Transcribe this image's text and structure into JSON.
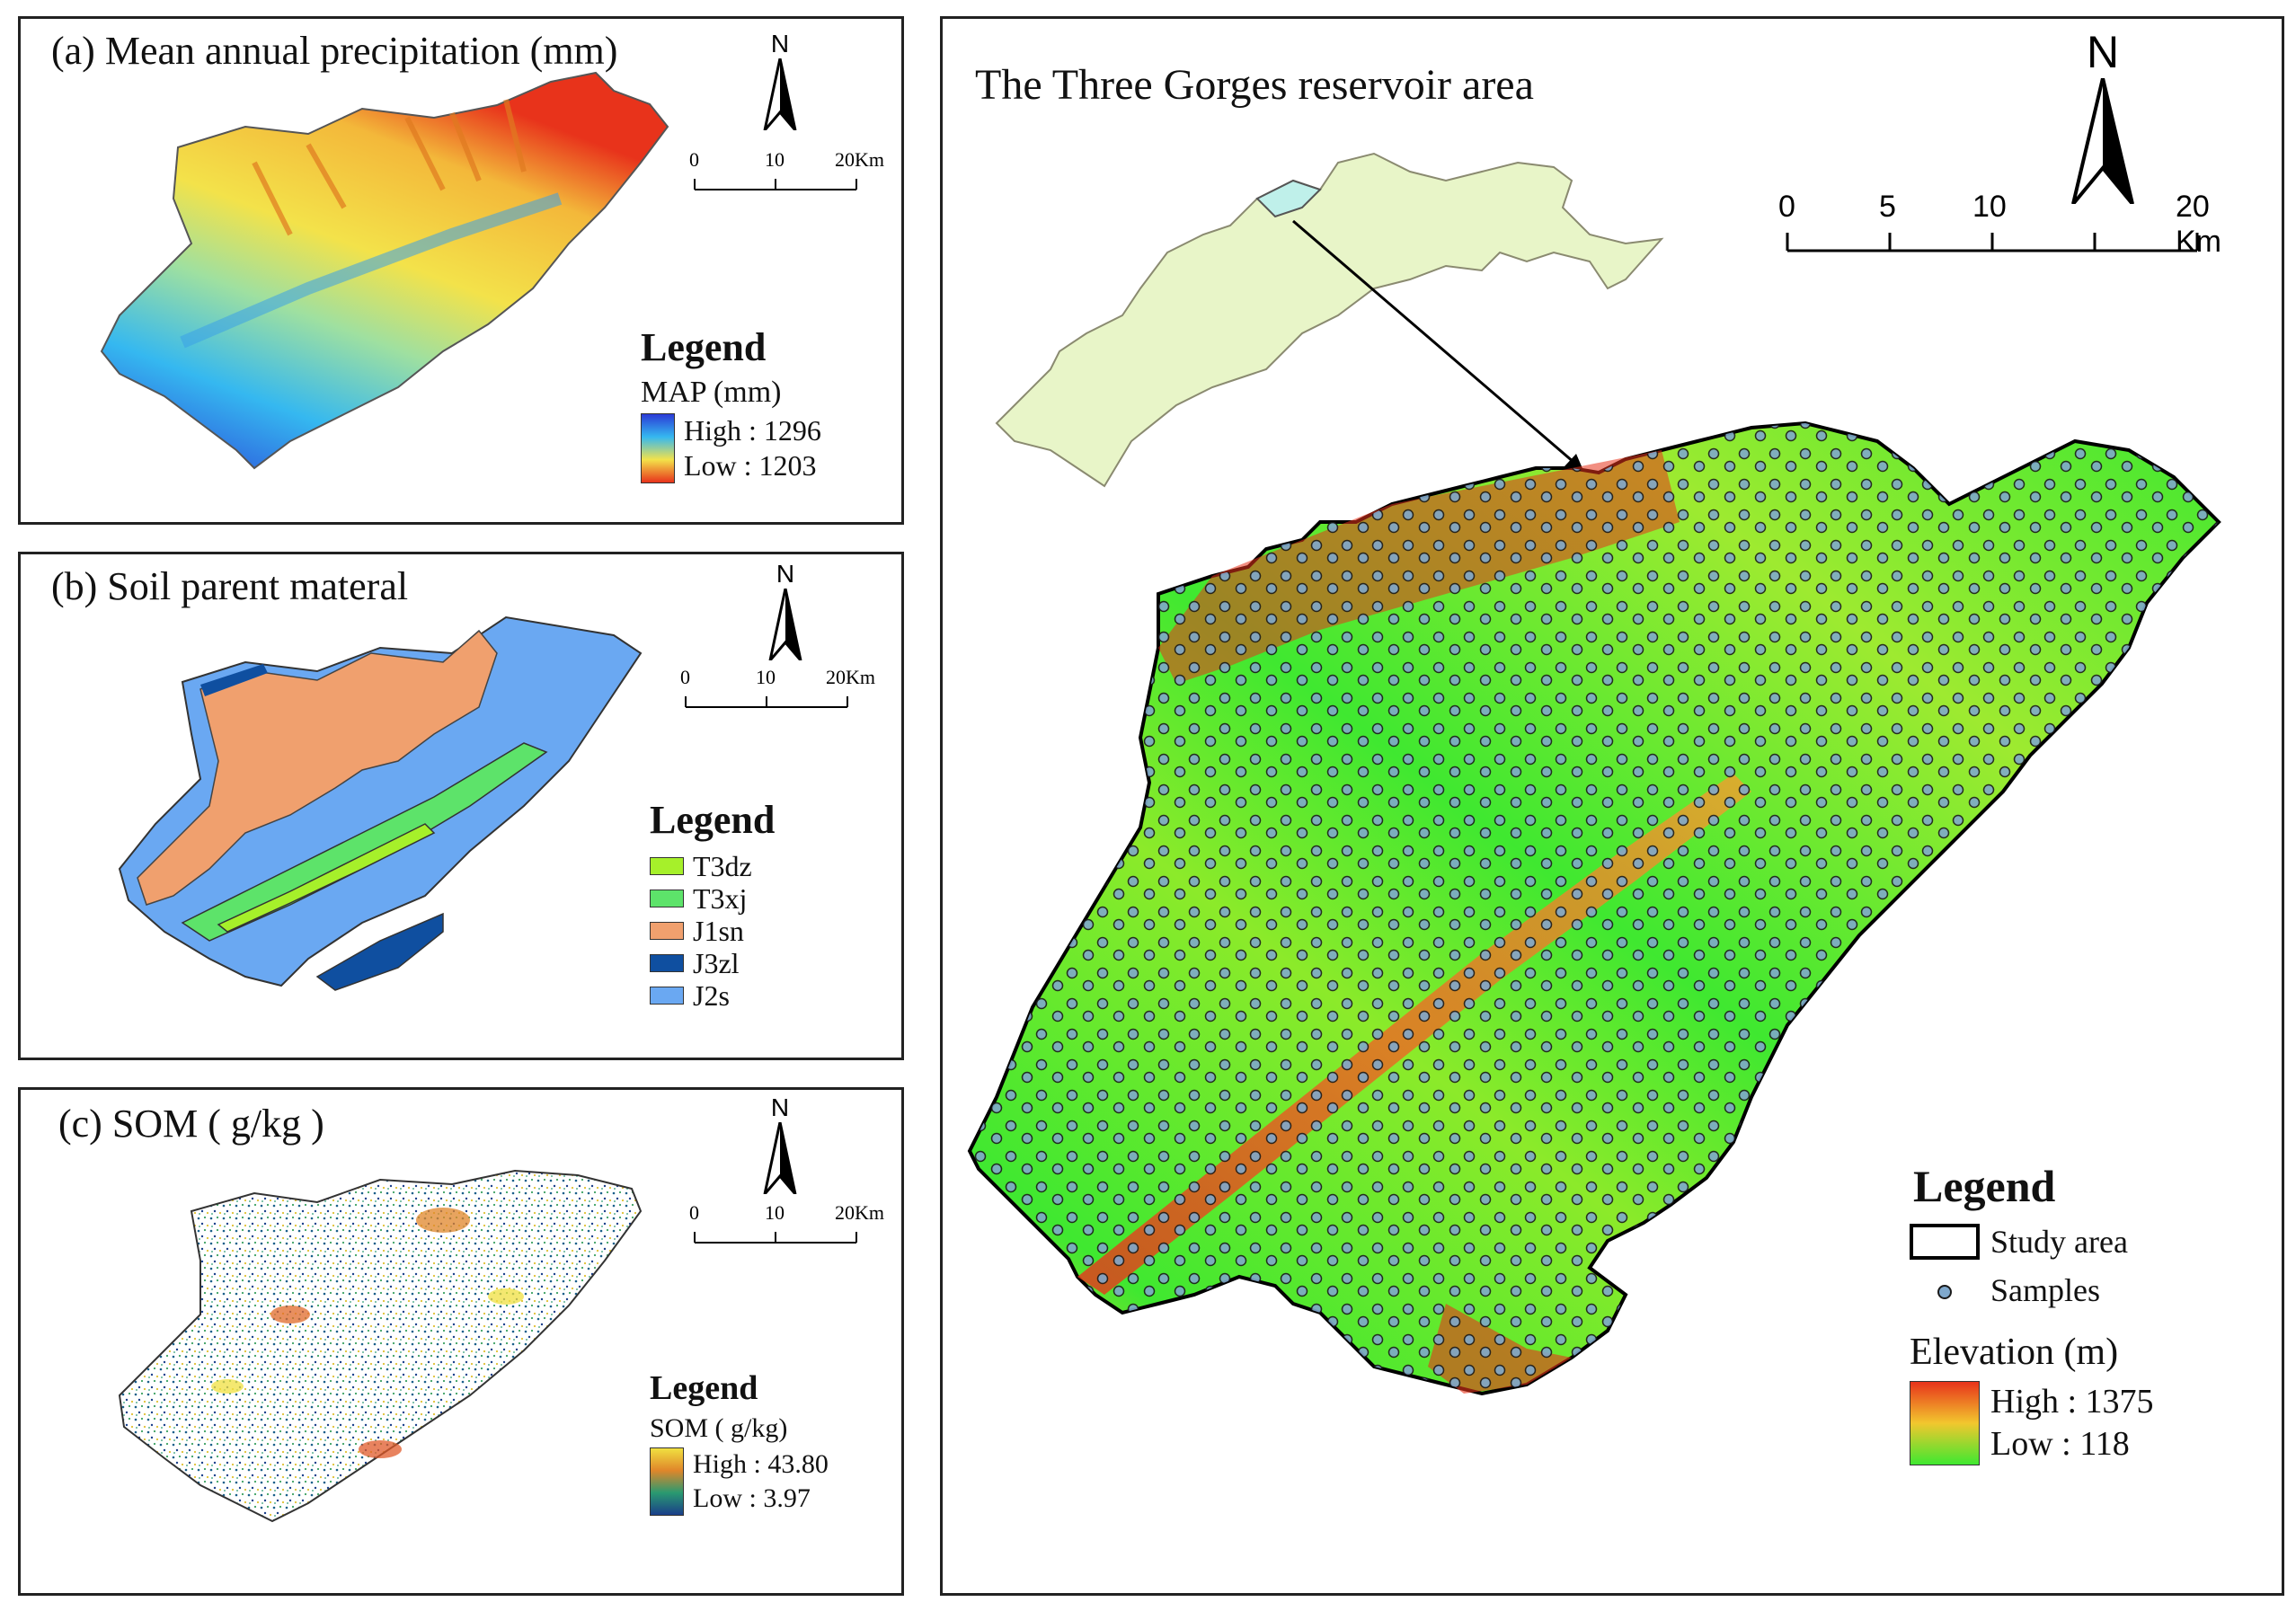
{
  "panel_a": {
    "title": "(a) Mean annual precipitation (mm)",
    "north_label": "N",
    "scale_ticks": [
      "0",
      "10",
      "20Km"
    ],
    "legend": {
      "heading": "Legend",
      "subheading": "MAP (mm)",
      "high_label": "High : 1296",
      "low_label": "Low : 1203",
      "gradient_colors": [
        "#2b3bd6",
        "#35b8f0",
        "#f3e24a",
        "#e8331b"
      ]
    }
  },
  "panel_b": {
    "title": "(b) Soil parent materal",
    "north_label": "N",
    "scale_ticks": [
      "0",
      "10",
      "20Km"
    ],
    "legend": {
      "heading": "Legend",
      "items": [
        {
          "label": "T3dz",
          "color": "#a6f02a"
        },
        {
          "label": "T3xj",
          "color": "#5de36a"
        },
        {
          "label": "J1sn",
          "color": "#f0a06e"
        },
        {
          "label": "J3zl",
          "color": "#0f4fa0"
        },
        {
          "label": "J2s",
          "color": "#6aa8f2"
        }
      ]
    }
  },
  "panel_c": {
    "title": "(c) SOM ( g/kg )",
    "north_label": "N",
    "scale_ticks": [
      "0",
      "10",
      "20Km"
    ],
    "legend": {
      "heading": "Legend",
      "subheading": "SOM ( g/kg)",
      "high_label": "High : 43.80",
      "low_label": "Low : 3.97",
      "gradient_colors": [
        "#f0e040",
        "#e0862a",
        "#2a9a70",
        "#1a3f8a"
      ]
    }
  },
  "main": {
    "title": "The Three Gorges reservoir area",
    "north_label": "N",
    "scale_ticks": [
      "0",
      "5",
      "10",
      "20 Km"
    ],
    "legend": {
      "heading": "Legend",
      "study_area_label": "Study area",
      "samples_label": "Samples",
      "elevation_heading": "Elevation (m)",
      "high_label": "High : 1375",
      "low_label": "Low : 118",
      "gradient_colors": [
        "#e8331b",
        "#f2c72e",
        "#3fe830"
      ],
      "sample_color": "#7fa8cc",
      "inset_region_color": "#e8f5c8",
      "inset_highlight_color": "#bff0ea"
    }
  }
}
